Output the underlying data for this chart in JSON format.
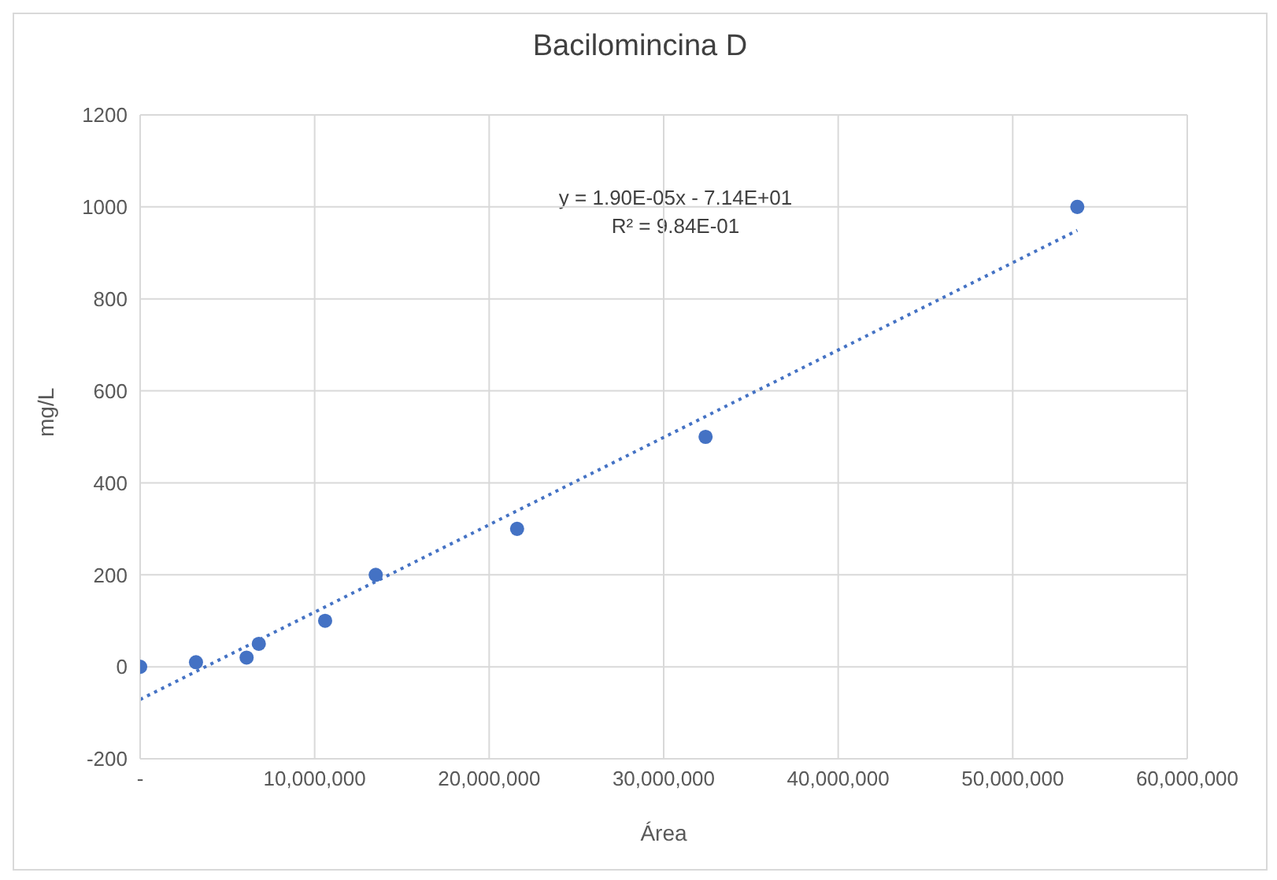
{
  "chart_data": {
    "type": "scatter",
    "title": "Bacilomincina D",
    "xlabel": "Área",
    "ylabel": "mg/L",
    "x": [
      0,
      3200000,
      6100000,
      6800000,
      10600000,
      13500000,
      21600000,
      32400000,
      53700000
    ],
    "series": [
      {
        "color": "#4472c4",
        "values": [
          0,
          10,
          20,
          50,
          100,
          200,
          300,
          500,
          1000
        ],
        "marker": "circle"
      },
      {
        "type": "line",
        "color": "#4472c4",
        "x": [
          0,
          53700000
        ],
        "values": [
          -71,
          949
        ],
        "line_style": "dotted",
        "marker": "none"
      }
    ],
    "xlim": [
      0,
      60000000
    ],
    "xticks": [
      {
        "value": 0,
        "label": "-"
      },
      {
        "value": 10000000,
        "label": "10,000,000"
      },
      {
        "value": 20000000,
        "label": "20,000,000"
      },
      {
        "value": 30000000,
        "label": "30,000,000"
      },
      {
        "value": 40000000,
        "label": "40,000,000"
      },
      {
        "value": 50000000,
        "label": "50,000,000"
      },
      {
        "value": 60000000,
        "label": "60,000,000"
      }
    ],
    "ylim": [
      -200,
      1200
    ],
    "yticks": [
      -200,
      0,
      200,
      400,
      600,
      800,
      1000,
      1200
    ],
    "grid": true,
    "annotations": [
      "y = 1.90E-05x - 7.14E+01",
      "R² = 9.84E-01"
    ]
  }
}
